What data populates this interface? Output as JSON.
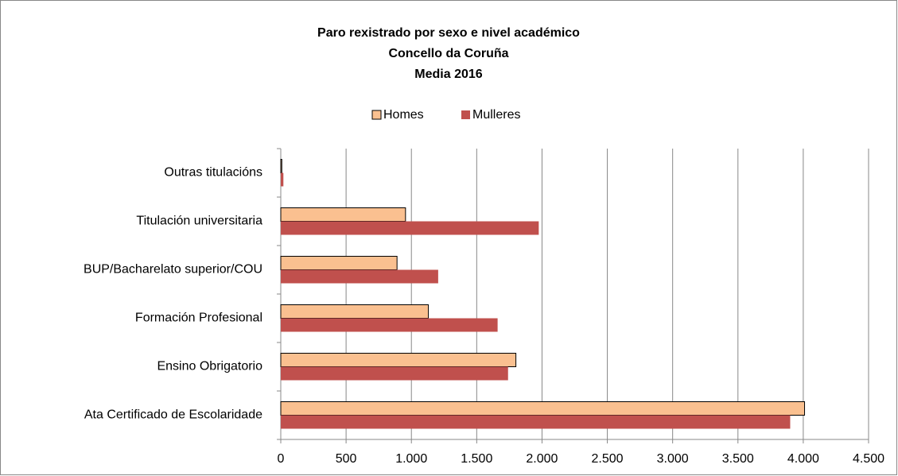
{
  "chart_data": {
    "type": "hbar",
    "title": [
      "Paro rexistrado por sexo e nivel académico",
      "Concello da Coruña",
      "Media 2016"
    ],
    "categories": [
      "Outras titulacións",
      "Titulación universitaria",
      "BUP/Bacharelato superior/COU",
      "Formación Profesional",
      "Ensino Obrigatorio",
      "Ata Certificado de Escolaridade"
    ],
    "series": [
      {
        "name": "Homes",
        "color": "#fac090",
        "values": [
          8,
          955,
          890,
          1130,
          1800,
          4010
        ]
      },
      {
        "name": "Mulleres",
        "color": "#c0504d",
        "values": [
          20,
          1975,
          1205,
          1660,
          1740,
          3900
        ]
      }
    ],
    "xlim": [
      0,
      4500
    ],
    "xticks": [
      0,
      500,
      {
        "value": 1000,
        "label": "1.000"
      },
      {
        "value": 1500,
        "label": "1.500"
      },
      {
        "value": 2000,
        "label": "2.000"
      },
      {
        "value": 2500,
        "label": "2.500"
      },
      {
        "value": 3000,
        "label": "3.000"
      },
      {
        "value": 3500,
        "label": "3.500"
      },
      {
        "value": 4000,
        "label": "4.000"
      },
      {
        "value": 4500,
        "label": "4.500"
      }
    ],
    "grid": true,
    "legend": "top"
  }
}
